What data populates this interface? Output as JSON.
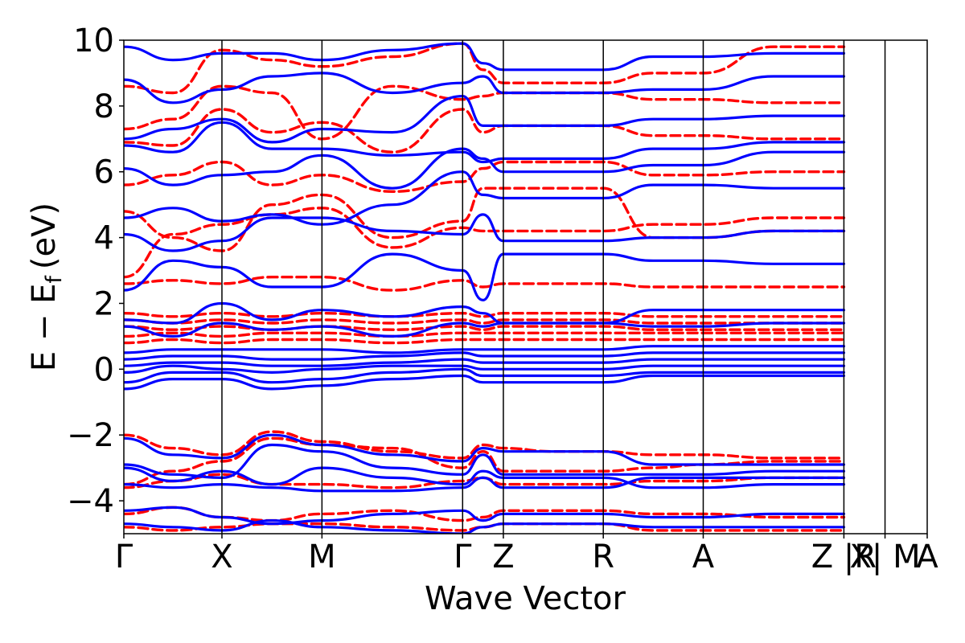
{
  "chart_data": {
    "type": "line",
    "title": "",
    "xlabel": "Wave Vector",
    "ylabel": "E − E",
    "ylabel_subscript": "f",
    "ylabel_unit": "(eV)",
    "ylim": [
      -5,
      10
    ],
    "yticks": [
      -4,
      -2,
      0,
      2,
      4,
      6,
      8,
      10
    ],
    "ytick_labels": [
      "−4",
      "−2",
      "0",
      "2",
      "4",
      "6",
      "8",
      "10"
    ],
    "kpath": [
      {
        "label": "Γ",
        "k": 0.0
      },
      {
        "label": "X",
        "k": 0.1221
      },
      {
        "label": "M",
        "k": 0.2466
      },
      {
        "label": "Γ",
        "k": 0.4217
      },
      {
        "label": "Z",
        "k": 0.4724
      },
      {
        "label": "R",
        "k": 0.5968
      },
      {
        "label": "A",
        "k": 0.7212
      },
      {
        "label": "Z |R",
        "k": 0.8963
      },
      {
        "label": "X| M",
        "k": 0.9475
      },
      {
        "label": "A",
        "k": 1.0
      }
    ],
    "series": [
      {
        "style": "dashed",
        "color": "#ff0000",
        "bands": [
          {
            "kind": "valence",
            "pts": [
              -2.0,
              -2.4,
              -2.6,
              -1.9,
              -2.2,
              -2.5,
              -2.7,
              -2.3,
              -2.4,
              -2.5,
              -2.5,
              -2.6,
              -2.6,
              -2.7,
              -2.7
            ]
          },
          {
            "kind": "valence",
            "pts": [
              -3.5,
              -3.1,
              -2.8,
              -2.1,
              -2.3,
              -2.4,
              -3.0,
              -2.5,
              -3.1,
              -3.1,
              -3.1,
              -3.0,
              -2.9,
              -2.8,
              -2.8
            ]
          },
          {
            "kind": "valence",
            "pts": [
              -3.6,
              -3.4,
              -3.2,
              -3.5,
              -3.5,
              -3.6,
              -3.4,
              -3.3,
              -3.5,
              -3.5,
              -3.5,
              -3.4,
              -3.4,
              -3.3,
              -3.3
            ]
          },
          {
            "kind": "valence",
            "pts": [
              -4.4,
              -4.2,
              -4.5,
              -4.6,
              -4.4,
              -4.3,
              -4.6,
              -4.5,
              -4.3,
              -4.3,
              -4.3,
              -4.4,
              -4.4,
              -4.5,
              -4.5
            ]
          },
          {
            "kind": "valence",
            "pts": [
              -4.8,
              -4.9,
              -4.8,
              -4.7,
              -4.7,
              -4.8,
              -4.9,
              -4.8,
              -4.7,
              -4.7,
              -4.7,
              -4.9,
              -4.9,
              -4.9,
              -4.9
            ]
          },
          {
            "kind": "conduction",
            "pts": [
              0.8,
              0.9,
              0.8,
              0.9,
              0.9,
              0.8,
              0.9,
              0.9,
              0.9,
              0.9,
              0.9,
              0.9,
              0.9,
              0.9,
              0.9
            ]
          },
          {
            "kind": "conduction",
            "pts": [
              1.0,
              1.1,
              1.0,
              1.1,
              1.1,
              1.0,
              1.1,
              1.1,
              1.1,
              1.1,
              1.1,
              1.1,
              1.1,
              1.1,
              1.1
            ]
          },
          {
            "kind": "conduction",
            "pts": [
              1.3,
              1.2,
              1.3,
              1.2,
              1.3,
              1.2,
              1.3,
              1.2,
              1.3,
              1.3,
              1.3,
              1.2,
              1.2,
              1.2,
              1.2
            ]
          },
          {
            "kind": "conduction",
            "pts": [
              1.5,
              1.4,
              1.5,
              1.4,
              1.5,
              1.4,
              1.5,
              1.4,
              1.5,
              1.5,
              1.5,
              1.4,
              1.4,
              1.4,
              1.4
            ]
          },
          {
            "kind": "conduction",
            "pts": [
              1.7,
              1.6,
              1.7,
              1.6,
              1.7,
              1.6,
              1.7,
              1.6,
              1.7,
              1.7,
              1.7,
              1.6,
              1.6,
              1.6,
              1.6
            ]
          },
          {
            "kind": "conduction",
            "pts": [
              2.6,
              2.7,
              2.6,
              2.8,
              2.8,
              2.4,
              2.7,
              2.5,
              2.6,
              2.6,
              2.6,
              2.5,
              2.5,
              2.5,
              2.5
            ]
          },
          {
            "kind": "conduction",
            "pts": [
              2.8,
              4.1,
              4.4,
              4.7,
              4.9,
              3.7,
              4.3,
              4.2,
              4.2,
              4.2,
              4.2,
              4.4,
              4.4,
              4.6,
              4.6
            ]
          },
          {
            "kind": "conduction",
            "pts": [
              4.8,
              4.0,
              3.6,
              5.0,
              5.3,
              4.0,
              4.5,
              5.5,
              5.5,
              5.5,
              5.5,
              4.0,
              4.0,
              4.2,
              4.2
            ]
          },
          {
            "kind": "conduction",
            "pts": [
              5.6,
              5.9,
              6.3,
              5.6,
              5.9,
              5.4,
              5.7,
              6.1,
              6.3,
              6.3,
              6.3,
              5.9,
              5.9,
              6.0,
              6.0
            ]
          },
          {
            "kind": "conduction",
            "pts": [
              6.9,
              6.8,
              7.9,
              7.2,
              7.5,
              6.6,
              7.9,
              7.2,
              7.4,
              7.4,
              7.4,
              7.1,
              7.1,
              7.0,
              7.0
            ]
          },
          {
            "kind": "conduction",
            "pts": [
              7.3,
              7.6,
              8.6,
              8.4,
              7.0,
              8.6,
              8.2,
              8.3,
              8.4,
              8.4,
              8.4,
              8.2,
              8.2,
              8.1,
              8.1
            ]
          },
          {
            "kind": "conduction",
            "pts": [
              8.6,
              8.4,
              9.7,
              9.4,
              9.2,
              9.5,
              9.9,
              9.1,
              8.7,
              8.7,
              8.7,
              9.0,
              9.0,
              9.8,
              9.8
            ]
          }
        ]
      },
      {
        "style": "solid",
        "color": "#0000ff",
        "bands": [
          {
            "kind": "valence",
            "pts": [
              -2.1,
              -2.6,
              -2.7,
              -2.0,
              -2.3,
              -2.6,
              -2.8,
              -2.4,
              -2.5,
              -2.5,
              -2.5,
              -2.9,
              -2.9,
              -2.9,
              -2.9
            ]
          },
          {
            "kind": "valence",
            "pts": [
              -2.9,
              -3.2,
              -3.3,
              -2.3,
              -2.5,
              -3.0,
              -3.2,
              -2.6,
              -3.2,
              -3.2,
              -3.2,
              -3.2,
              -3.2,
              -3.1,
              -3.1
            ]
          },
          {
            "kind": "valence",
            "pts": [
              -3.5,
              -3.6,
              -3.5,
              -3.6,
              -3.7,
              -3.7,
              -3.6,
              -3.3,
              -3.6,
              -3.6,
              -3.6,
              -3.3,
              -3.3,
              -3.3,
              -3.3
            ]
          },
          {
            "kind": "valence",
            "pts": [
              -4.3,
              -4.2,
              -4.5,
              -4.7,
              -4.6,
              -4.4,
              -4.3,
              -4.6,
              -4.4,
              -4.4,
              -4.4,
              -4.5,
              -4.5,
              -4.4,
              -4.4
            ]
          },
          {
            "kind": "valence",
            "pts": [
              -4.7,
              -4.8,
              -4.9,
              -4.6,
              -4.8,
              -4.9,
              -5.0,
              -4.8,
              -4.7,
              -4.7,
              -4.7,
              -4.8,
              -4.8,
              -4.8,
              -4.8
            ]
          },
          {
            "kind": "valence",
            "pts": [
              -3.0,
              -3.4,
              -3.1,
              -3.5,
              -3.0,
              -3.3,
              -3.5,
              -3.1,
              -3.3,
              -3.3,
              -3.3,
              -3.6,
              -3.6,
              -3.5,
              -3.5
            ]
          },
          {
            "kind": "gap",
            "pts": [
              -0.6,
              -0.3,
              -0.3,
              -0.6,
              -0.5,
              -0.3,
              -0.2,
              -0.4,
              -0.4,
              -0.4,
              -0.4,
              -0.2,
              -0.2,
              -0.2,
              -0.2
            ]
          },
          {
            "kind": "gap",
            "pts": [
              -0.4,
              -0.1,
              -0.1,
              -0.4,
              -0.3,
              -0.1,
              0.0,
              -0.2,
              -0.2,
              -0.2,
              -0.2,
              -0.1,
              -0.1,
              -0.1,
              -0.1
            ]
          },
          {
            "kind": "gap",
            "pts": [
              -0.1,
              0.1,
              0.0,
              -0.1,
              0.0,
              0.1,
              0.1,
              0.0,
              0.0,
              0.0,
              0.0,
              0.1,
              0.1,
              0.1,
              0.1
            ]
          },
          {
            "kind": "gap",
            "pts": [
              0.1,
              0.2,
              0.2,
              0.1,
              0.1,
              0.2,
              0.3,
              0.2,
              0.2,
              0.2,
              0.2,
              0.3,
              0.3,
              0.3,
              0.3
            ]
          },
          {
            "kind": "gap",
            "pts": [
              0.3,
              0.4,
              0.4,
              0.3,
              0.3,
              0.4,
              0.5,
              0.4,
              0.4,
              0.4,
              0.4,
              0.5,
              0.5,
              0.5,
              0.5
            ]
          },
          {
            "kind": "gap",
            "pts": [
              0.5,
              0.6,
              0.6,
              0.6,
              0.6,
              0.5,
              0.6,
              0.6,
              0.6,
              0.6,
              0.6,
              0.7,
              0.7,
              0.7,
              0.7
            ]
          },
          {
            "kind": "conduction",
            "pts": [
              1.3,
              1.0,
              1.4,
              1.2,
              1.3,
              1.0,
              1.4,
              1.3,
              1.4,
              1.4,
              1.4,
              1.3,
              1.3,
              1.4,
              1.4
            ]
          },
          {
            "kind": "conduction",
            "pts": [
              1.5,
              1.4,
              2.0,
              1.5,
              1.8,
              1.6,
              1.9,
              1.7,
              1.4,
              1.4,
              1.4,
              1.8,
              1.8,
              1.8,
              1.8
            ]
          },
          {
            "kind": "conduction",
            "pts": [
              2.4,
              3.3,
              3.1,
              2.5,
              2.5,
              3.5,
              3.0,
              2.1,
              3.5,
              3.5,
              3.5,
              3.3,
              3.3,
              3.2,
              3.2
            ]
          },
          {
            "kind": "conduction",
            "pts": [
              4.1,
              3.6,
              3.9,
              4.6,
              4.6,
              4.2,
              4.1,
              4.7,
              3.9,
              3.9,
              3.9,
              4.0,
              4.0,
              4.2,
              4.2
            ]
          },
          {
            "kind": "conduction",
            "pts": [
              4.6,
              4.9,
              4.5,
              4.7,
              4.4,
              5.0,
              6.0,
              5.3,
              5.2,
              5.2,
              5.2,
              5.6,
              5.6,
              5.5,
              5.5
            ]
          },
          {
            "kind": "conduction",
            "pts": [
              6.1,
              5.6,
              5.9,
              6.0,
              6.5,
              5.5,
              6.7,
              6.4,
              6.0,
              6.0,
              6.0,
              6.2,
              6.2,
              6.6,
              6.6
            ]
          },
          {
            "kind": "conduction",
            "pts": [
              6.8,
              6.6,
              7.5,
              6.7,
              6.7,
              6.5,
              6.6,
              6.3,
              6.4,
              6.4,
              6.4,
              6.7,
              6.7,
              6.9,
              6.9
            ]
          },
          {
            "kind": "conduction",
            "pts": [
              7.0,
              7.3,
              7.6,
              6.9,
              7.3,
              7.2,
              8.3,
              7.4,
              7.4,
              7.4,
              7.4,
              7.6,
              7.6,
              7.7,
              7.7
            ]
          },
          {
            "kind": "conduction",
            "pts": [
              8.8,
              8.1,
              8.5,
              8.9,
              9.0,
              8.4,
              8.7,
              8.9,
              8.4,
              8.4,
              8.4,
              8.5,
              8.5,
              8.9,
              8.9
            ]
          },
          {
            "kind": "conduction",
            "pts": [
              9.8,
              9.4,
              9.6,
              9.6,
              9.4,
              9.7,
              9.9,
              9.3,
              9.1,
              9.1,
              9.1,
              9.5,
              9.5,
              9.6,
              9.6
            ]
          }
        ]
      }
    ]
  }
}
